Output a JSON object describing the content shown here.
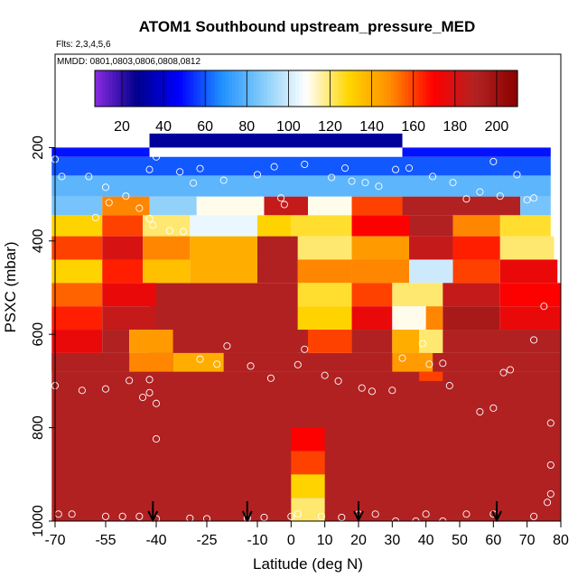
{
  "chart_data": {
    "type": "heatmap",
    "title": "ATOM1 Southbound upstream_pressure_MED",
    "subtitle_flights": "Flts: 2,3,4,5,6",
    "subtitle_dates": "MMDD: 0801,0803,0806,0808,0812",
    "xlabel": "Latitude (deg N)",
    "ylabel": "PSXC (mbar)",
    "xlim": [
      -70,
      80
    ],
    "ylim": [
      1000,
      0
    ],
    "x_ticks": [
      "-70",
      "-55",
      "-40",
      "-25",
      "-10",
      "0",
      "10",
      "20",
      "30",
      "40",
      "50",
      "60",
      "70",
      "80"
    ],
    "x_tick_values": [
      -70,
      -55,
      -40,
      -25,
      -10,
      0,
      10,
      20,
      30,
      40,
      50,
      60,
      70,
      80
    ],
    "y_ticks": [
      "200",
      "400",
      "600",
      "800",
      "1000"
    ],
    "y_tick_values": [
      200,
      400,
      600,
      800,
      1000
    ],
    "colorbar": {
      "range": [
        7,
        210
      ],
      "tick_labels": [
        "20",
        "40",
        "60",
        "80",
        "100",
        "120",
        "140",
        "160",
        "180",
        "200"
      ],
      "tick_values": [
        20,
        40,
        60,
        80,
        100,
        120,
        140,
        160,
        180,
        200
      ],
      "colors": [
        "#8a2be2",
        "#00008b",
        "#0000ff",
        "#1e90ff",
        "#87cefa",
        "#ffffff",
        "#ffd700",
        "#ff8c00",
        "#ff0000",
        "#b22222",
        "#8b0000"
      ]
    },
    "arrow_latitudes": [
      -41,
      -13,
      20,
      61
    ],
    "background_value": 190,
    "cells": [
      [
        -42,
        33,
        170,
        200,
        30
      ],
      [
        -71,
        -42,
        200,
        220,
        50
      ],
      [
        33,
        77,
        200,
        220,
        50
      ],
      [
        -71,
        77,
        220,
        260,
        60
      ],
      [
        -71,
        77,
        260,
        305,
        80
      ],
      [
        -71,
        -56,
        305,
        345,
        85
      ],
      [
        -56,
        -42,
        305,
        345,
        150
      ],
      [
        -42,
        -28,
        305,
        345,
        90
      ],
      [
        -28,
        -8,
        305,
        345,
        110
      ],
      [
        -8,
        5,
        305,
        345,
        185
      ],
      [
        5,
        18,
        305,
        345,
        110
      ],
      [
        18,
        33,
        305,
        345,
        160
      ],
      [
        33,
        68,
        305,
        345,
        190
      ],
      [
        68,
        77,
        305,
        345,
        85
      ],
      [
        -71,
        -56,
        345,
        390,
        130
      ],
      [
        -56,
        -44,
        345,
        390,
        160
      ],
      [
        -44,
        -30,
        345,
        390,
        120
      ],
      [
        -30,
        -10,
        345,
        390,
        105
      ],
      [
        -10,
        0,
        345,
        390,
        130
      ],
      [
        0,
        18,
        345,
        390,
        125
      ],
      [
        18,
        35,
        345,
        390,
        170
      ],
      [
        35,
        48,
        345,
        390,
        190
      ],
      [
        48,
        62,
        345,
        390,
        150
      ],
      [
        62,
        77,
        345,
        390,
        125
      ],
      [
        -71,
        -56,
        390,
        440,
        160
      ],
      [
        -56,
        -44,
        390,
        440,
        180
      ],
      [
        -44,
        -30,
        390,
        440,
        150
      ],
      [
        -30,
        -10,
        390,
        440,
        140
      ],
      [
        -10,
        2,
        390,
        440,
        190
      ],
      [
        2,
        18,
        390,
        440,
        120
      ],
      [
        18,
        35,
        390,
        440,
        145
      ],
      [
        35,
        48,
        390,
        440,
        185
      ],
      [
        48,
        62,
        390,
        440,
        165
      ],
      [
        62,
        78,
        390,
        440,
        120
      ],
      [
        -71,
        -56,
        440,
        490,
        130
      ],
      [
        -56,
        -44,
        440,
        490,
        165
      ],
      [
        -44,
        -30,
        440,
        490,
        135
      ],
      [
        -30,
        -10,
        440,
        490,
        140
      ],
      [
        -10,
        2,
        440,
        490,
        190
      ],
      [
        2,
        18,
        440,
        490,
        150
      ],
      [
        18,
        35,
        440,
        490,
        150
      ],
      [
        35,
        48,
        440,
        490,
        100
      ],
      [
        48,
        62,
        440,
        490,
        160
      ],
      [
        62,
        79,
        440,
        490,
        175
      ],
      [
        -71,
        -56,
        490,
        540,
        155
      ],
      [
        -56,
        -40,
        490,
        540,
        175
      ],
      [
        2,
        18,
        490,
        540,
        125
      ],
      [
        18,
        30,
        490,
        540,
        160
      ],
      [
        30,
        45,
        490,
        540,
        120
      ],
      [
        45,
        62,
        490,
        540,
        185
      ],
      [
        62,
        80,
        490,
        540,
        170
      ],
      [
        -71,
        -56,
        540,
        590,
        165
      ],
      [
        -56,
        -40,
        540,
        590,
        185
      ],
      [
        2,
        18,
        540,
        590,
        130
      ],
      [
        18,
        30,
        540,
        590,
        175
      ],
      [
        30,
        40,
        540,
        590,
        110
      ],
      [
        40,
        45,
        540,
        590,
        150
      ],
      [
        45,
        62,
        540,
        590,
        195
      ],
      [
        62,
        80,
        540,
        590,
        175
      ],
      [
        -71,
        -56,
        590,
        640,
        175
      ],
      [
        -56,
        -48,
        590,
        640,
        190
      ],
      [
        -48,
        -35,
        590,
        640,
        145
      ],
      [
        -35,
        -20,
        590,
        640,
        190
      ],
      [
        5,
        18,
        590,
        640,
        160
      ],
      [
        18,
        30,
        590,
        640,
        190
      ],
      [
        30,
        38,
        590,
        640,
        140
      ],
      [
        38,
        45,
        590,
        640,
        120
      ],
      [
        45,
        80,
        590,
        640,
        190
      ],
      [
        -71,
        -56,
        640,
        680,
        190
      ],
      [
        -48,
        -35,
        640,
        680,
        150
      ],
      [
        -35,
        -20,
        640,
        680,
        140
      ],
      [
        30,
        42,
        640,
        680,
        145
      ],
      [
        38,
        45,
        680,
        700,
        160
      ],
      [
        0,
        10,
        800,
        850,
        170
      ],
      [
        0,
        10,
        850,
        900,
        160
      ],
      [
        0,
        10,
        900,
        950,
        130
      ],
      [
        0,
        10,
        950,
        1000,
        120
      ]
    ],
    "points": [
      [
        -70,
        225
      ],
      [
        -68,
        262
      ],
      [
        -60,
        262
      ],
      [
        -55,
        285
      ],
      [
        -54,
        318
      ],
      [
        -58,
        350
      ],
      [
        -49,
        304
      ],
      [
        -45,
        330
      ],
      [
        -42,
        247
      ],
      [
        -40,
        220
      ],
      [
        -42,
        352
      ],
      [
        -41,
        366
      ],
      [
        -33,
        252
      ],
      [
        -29,
        276
      ],
      [
        -27,
        245
      ],
      [
        -20,
        270
      ],
      [
        -10,
        258
      ],
      [
        -5,
        241
      ],
      [
        -3,
        308
      ],
      [
        -2,
        322
      ],
      [
        4,
        236
      ],
      [
        12,
        264
      ],
      [
        16,
        244
      ],
      [
        18,
        272
      ],
      [
        22,
        275
      ],
      [
        26,
        283
      ],
      [
        31,
        247
      ],
      [
        35,
        244
      ],
      [
        42,
        262
      ],
      [
        48,
        275
      ],
      [
        52,
        310
      ],
      [
        56,
        295
      ],
      [
        60,
        230
      ],
      [
        62,
        304
      ],
      [
        67,
        258
      ],
      [
        70,
        312
      ],
      [
        72,
        308
      ],
      [
        -70,
        710
      ],
      [
        -62,
        720
      ],
      [
        -55,
        717
      ],
      [
        -48,
        699
      ],
      [
        -44,
        735
      ],
      [
        -42,
        697
      ],
      [
        -42,
        725
      ],
      [
        -40,
        748
      ],
      [
        -40,
        824
      ],
      [
        -36,
        378
      ],
      [
        -32,
        380
      ],
      [
        -27,
        653
      ],
      [
        -22,
        664
      ],
      [
        -19,
        625
      ],
      [
        -12,
        668
      ],
      [
        -6,
        694
      ],
      [
        2,
        665
      ],
      [
        4,
        632
      ],
      [
        10,
        688
      ],
      [
        14,
        700
      ],
      [
        21,
        715
      ],
      [
        24,
        722
      ],
      [
        30,
        720
      ],
      [
        33,
        651
      ],
      [
        39,
        620
      ],
      [
        41,
        664
      ],
      [
        45,
        662
      ],
      [
        47,
        710
      ],
      [
        56,
        766
      ],
      [
        60,
        758
      ],
      [
        63,
        682
      ],
      [
        65,
        676
      ],
      [
        72,
        612
      ],
      [
        75,
        540
      ],
      [
        77,
        790
      ],
      [
        77,
        880
      ],
      [
        77,
        942
      ],
      [
        76,
        960
      ],
      [
        -69,
        985
      ],
      [
        -65,
        985
      ],
      [
        -55,
        990
      ],
      [
        -50,
        990
      ],
      [
        -45,
        990
      ],
      [
        -40,
        995
      ],
      [
        -30,
        994
      ],
      [
        -25,
        995
      ],
      [
        -13,
        994
      ],
      [
        -8,
        992
      ],
      [
        0,
        990
      ],
      [
        2,
        985
      ],
      [
        9,
        990
      ],
      [
        15,
        992
      ],
      [
        20,
        985
      ],
      [
        25,
        985
      ],
      [
        31,
        1000
      ],
      [
        37,
        1000
      ],
      [
        40,
        985
      ],
      [
        45,
        1000
      ],
      [
        52,
        985
      ],
      [
        60,
        985
      ],
      [
        72,
        990
      ]
    ]
  }
}
